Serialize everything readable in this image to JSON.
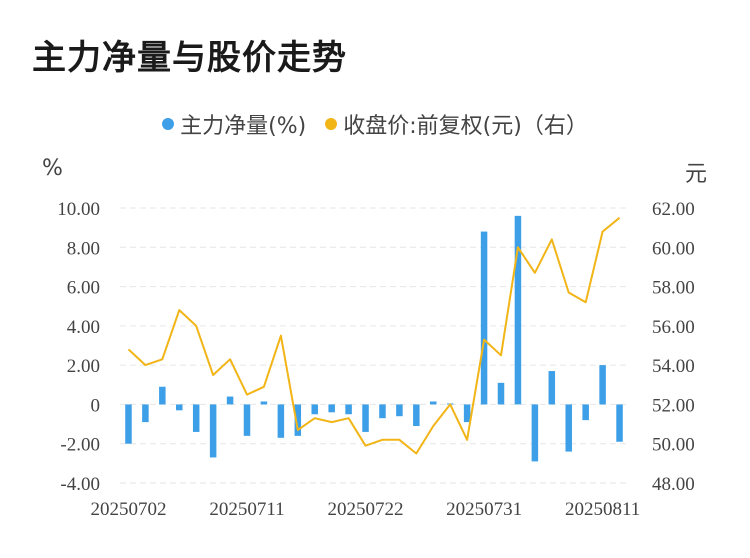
{
  "title": "主力净量与股价走势",
  "colors": {
    "bar": "#3d9fe8",
    "line": "#f2b517",
    "grid": "#e6e6e6"
  },
  "chart_data": {
    "type": "bar+line",
    "title": "主力净量与股价走势",
    "legend": [
      {
        "label": "主力净量(%)",
        "color": "#3d9fe8",
        "shape": "dot"
      },
      {
        "label": "收盘价:前复权(元)（右）",
        "color": "#f2b517",
        "shape": "dot"
      }
    ],
    "legend_position": "top-center",
    "y_left": {
      "unit": "%",
      "min": -4,
      "max": 10,
      "ticks": [
        "-4.00",
        "-2.00",
        "0",
        "2.00",
        "4.00",
        "6.00",
        "8.00",
        "10.00"
      ]
    },
    "y_right": {
      "unit": "元",
      "min": 48,
      "max": 62,
      "ticks": [
        "48.00",
        "50.00",
        "52.00",
        "54.00",
        "56.00",
        "58.00",
        "60.00",
        "62.00"
      ]
    },
    "x_tick_labels": [
      {
        "index": 0,
        "label": "20250702"
      },
      {
        "index": 7,
        "label": "20250711"
      },
      {
        "index": 14,
        "label": "20250722"
      },
      {
        "index": 21,
        "label": "20250731"
      },
      {
        "index": 28,
        "label": "20250811"
      }
    ],
    "grid": "horizontal-dashed",
    "series": [
      {
        "name": "主力净量(%)",
        "type": "bar",
        "axis": "left",
        "values": [
          -2.0,
          -0.9,
          0.9,
          -0.3,
          -1.4,
          -2.7,
          0.4,
          -1.6,
          0.15,
          -1.7,
          -1.6,
          -0.5,
          -0.4,
          -0.5,
          -1.4,
          -0.7,
          -0.6,
          -1.1,
          0.15,
          0.05,
          -0.9,
          8.8,
          1.1,
          9.6,
          -2.9,
          1.7,
          -2.4,
          -0.8,
          2.0,
          -1.9
        ]
      },
      {
        "name": "收盘价:前复权(元)（右）",
        "type": "line",
        "axis": "right",
        "values": [
          54.8,
          54.0,
          54.3,
          56.8,
          56.0,
          53.5,
          54.3,
          52.5,
          52.9,
          55.5,
          50.7,
          51.3,
          51.1,
          51.3,
          49.9,
          50.2,
          50.2,
          49.5,
          50.9,
          52.0,
          50.2,
          55.3,
          54.5,
          60.0,
          58.7,
          60.4,
          57.7,
          57.2,
          60.8,
          61.5
        ]
      }
    ]
  }
}
